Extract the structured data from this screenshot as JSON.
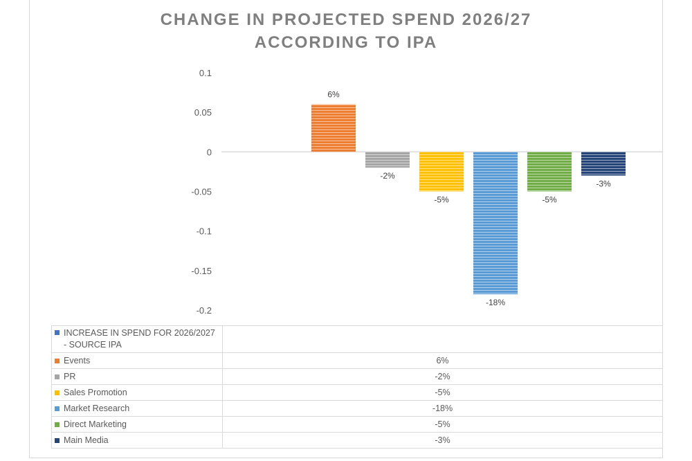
{
  "chart_data": {
    "type": "bar",
    "title_lines": [
      "CHANGE IN PROJECTED SPEND 2026/27",
      "ACCORDING TO IPA"
    ],
    "ylim": [
      -0.2,
      0.1
    ],
    "yticks": [
      "0.1",
      "0.05",
      "0",
      "-0.05",
      "-0.1",
      "-0.15",
      "-0.2"
    ],
    "categories": [
      "Events",
      "PR",
      "Sales Promotion",
      "Market Research",
      "Direct Marketing",
      "Main Media"
    ],
    "values": [
      0.06,
      -0.02,
      -0.05,
      -0.18,
      -0.05,
      -0.03
    ],
    "data_labels": [
      "6%",
      "-2%",
      "-5%",
      "-18%",
      "-5%",
      "-3%"
    ],
    "colors": [
      "#ed7d31",
      "#a5a5a5",
      "#ffc000",
      "#5b9bd5",
      "#70ad47",
      "#264478"
    ],
    "series_name": "INCREASE IN SPEND FOR 2026/2027 - SOURCE IPA",
    "series_color": "#4472c4"
  }
}
